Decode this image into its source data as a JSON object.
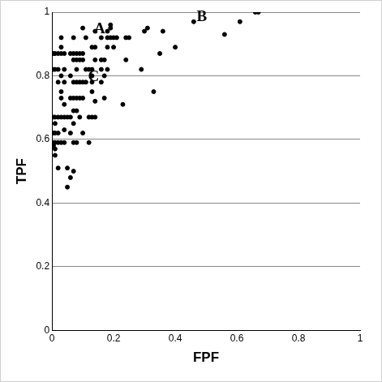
{
  "chart_data": {
    "type": "scatter",
    "x_label": "FPF",
    "y_label": "TPF",
    "x": [
      0.005,
      0.005,
      0.005,
      0.005,
      0.005,
      0.005,
      0.01,
      0.01,
      0.01,
      0.01,
      0.01,
      0.01,
      0.01,
      0.01,
      0.02,
      0.02,
      0.02,
      0.02,
      0.02,
      0.02,
      0.02,
      0.03,
      0.03,
      0.03,
      0.03,
      0.03,
      0.03,
      0.03,
      0.03,
      0.04,
      0.04,
      0.04,
      0.04,
      0.04,
      0.04,
      0.04,
      0.05,
      0.05,
      0.05,
      0.06,
      0.06,
      0.06,
      0.06,
      0.06,
      0.06,
      0.07,
      0.07,
      0.07,
      0.07,
      0.07,
      0.07,
      0.07,
      0.07,
      0.07,
      0.08,
      0.08,
      0.08,
      0.08,
      0.08,
      0.08,
      0.08,
      0.09,
      0.09,
      0.09,
      0.09,
      0.09,
      0.1,
      0.1,
      0.1,
      0.1,
      0.1,
      0.1,
      0.11,
      0.11,
      0.11,
      0.12,
      0.12,
      0.12,
      0.13,
      0.13,
      0.13,
      0.13,
      0.13,
      0.13,
      0.14,
      0.14,
      0.14,
      0.14,
      0.14,
      0.16,
      0.16,
      0.16,
      0.16,
      0.17,
      0.17,
      0.17,
      0.18,
      0.18,
      0.18,
      0.18,
      0.19,
      0.19,
      0.19,
      0.2,
      0.2,
      0.21,
      0.23,
      0.24,
      0.24,
      0.25,
      0.29,
      0.3,
      0.31,
      0.33,
      0.35,
      0.36,
      0.4,
      0.46,
      0.56,
      0.61,
      0.66,
      0.67
    ],
    "values": [
      0.87,
      0.82,
      0.67,
      0.62,
      0.59,
      0.58,
      0.87,
      0.82,
      0.67,
      0.65,
      0.62,
      0.59,
      0.57,
      0.55,
      0.87,
      0.82,
      0.78,
      0.67,
      0.62,
      0.59,
      0.51,
      0.92,
      0.89,
      0.87,
      0.8,
      0.75,
      0.73,
      0.67,
      0.59,
      0.87,
      0.82,
      0.78,
      0.71,
      0.67,
      0.63,
      0.59,
      0.67,
      0.51,
      0.45,
      0.87,
      0.8,
      0.73,
      0.67,
      0.62,
      0.48,
      0.92,
      0.87,
      0.85,
      0.78,
      0.73,
      0.69,
      0.65,
      0.59,
      0.5,
      0.87,
      0.85,
      0.82,
      0.78,
      0.73,
      0.69,
      0.59,
      0.87,
      0.85,
      0.78,
      0.73,
      0.67,
      0.95,
      0.87,
      0.85,
      0.78,
      0.73,
      0.62,
      0.92,
      0.82,
      0.78,
      0.82,
      0.67,
      0.59,
      0.89,
      0.82,
      0.8,
      0.78,
      0.75,
      0.67,
      0.94,
      0.89,
      0.85,
      0.72,
      0.67,
      0.92,
      0.85,
      0.82,
      0.78,
      0.85,
      0.8,
      0.73,
      0.94,
      0.92,
      0.89,
      0.82,
      0.96,
      0.95,
      0.92,
      0.92,
      0.89,
      0.92,
      0.71,
      0.92,
      0.85,
      0.92,
      0.82,
      0.94,
      0.95,
      0.75,
      0.87,
      0.94,
      0.89,
      0.97,
      0.93,
      0.97,
      1.0,
      1.0
    ],
    "color": "#000000",
    "marker": "circle",
    "xlim": [
      0,
      1
    ],
    "xticks": [
      0,
      0.2,
      0.4,
      0.6,
      0.8,
      1
    ],
    "ylim": [
      0,
      1
    ],
    "yticks": [
      0,
      0.2,
      0.4,
      0.6,
      0.8,
      1
    ],
    "grid": "y",
    "annotations": [
      {
        "text": "A",
        "x": 0.155,
        "y": 0.947
      },
      {
        "text": "B",
        "x": 0.486,
        "y": 0.984
      },
      {
        "text": "C",
        "x": 0.135,
        "y": 0.797
      }
    ]
  }
}
